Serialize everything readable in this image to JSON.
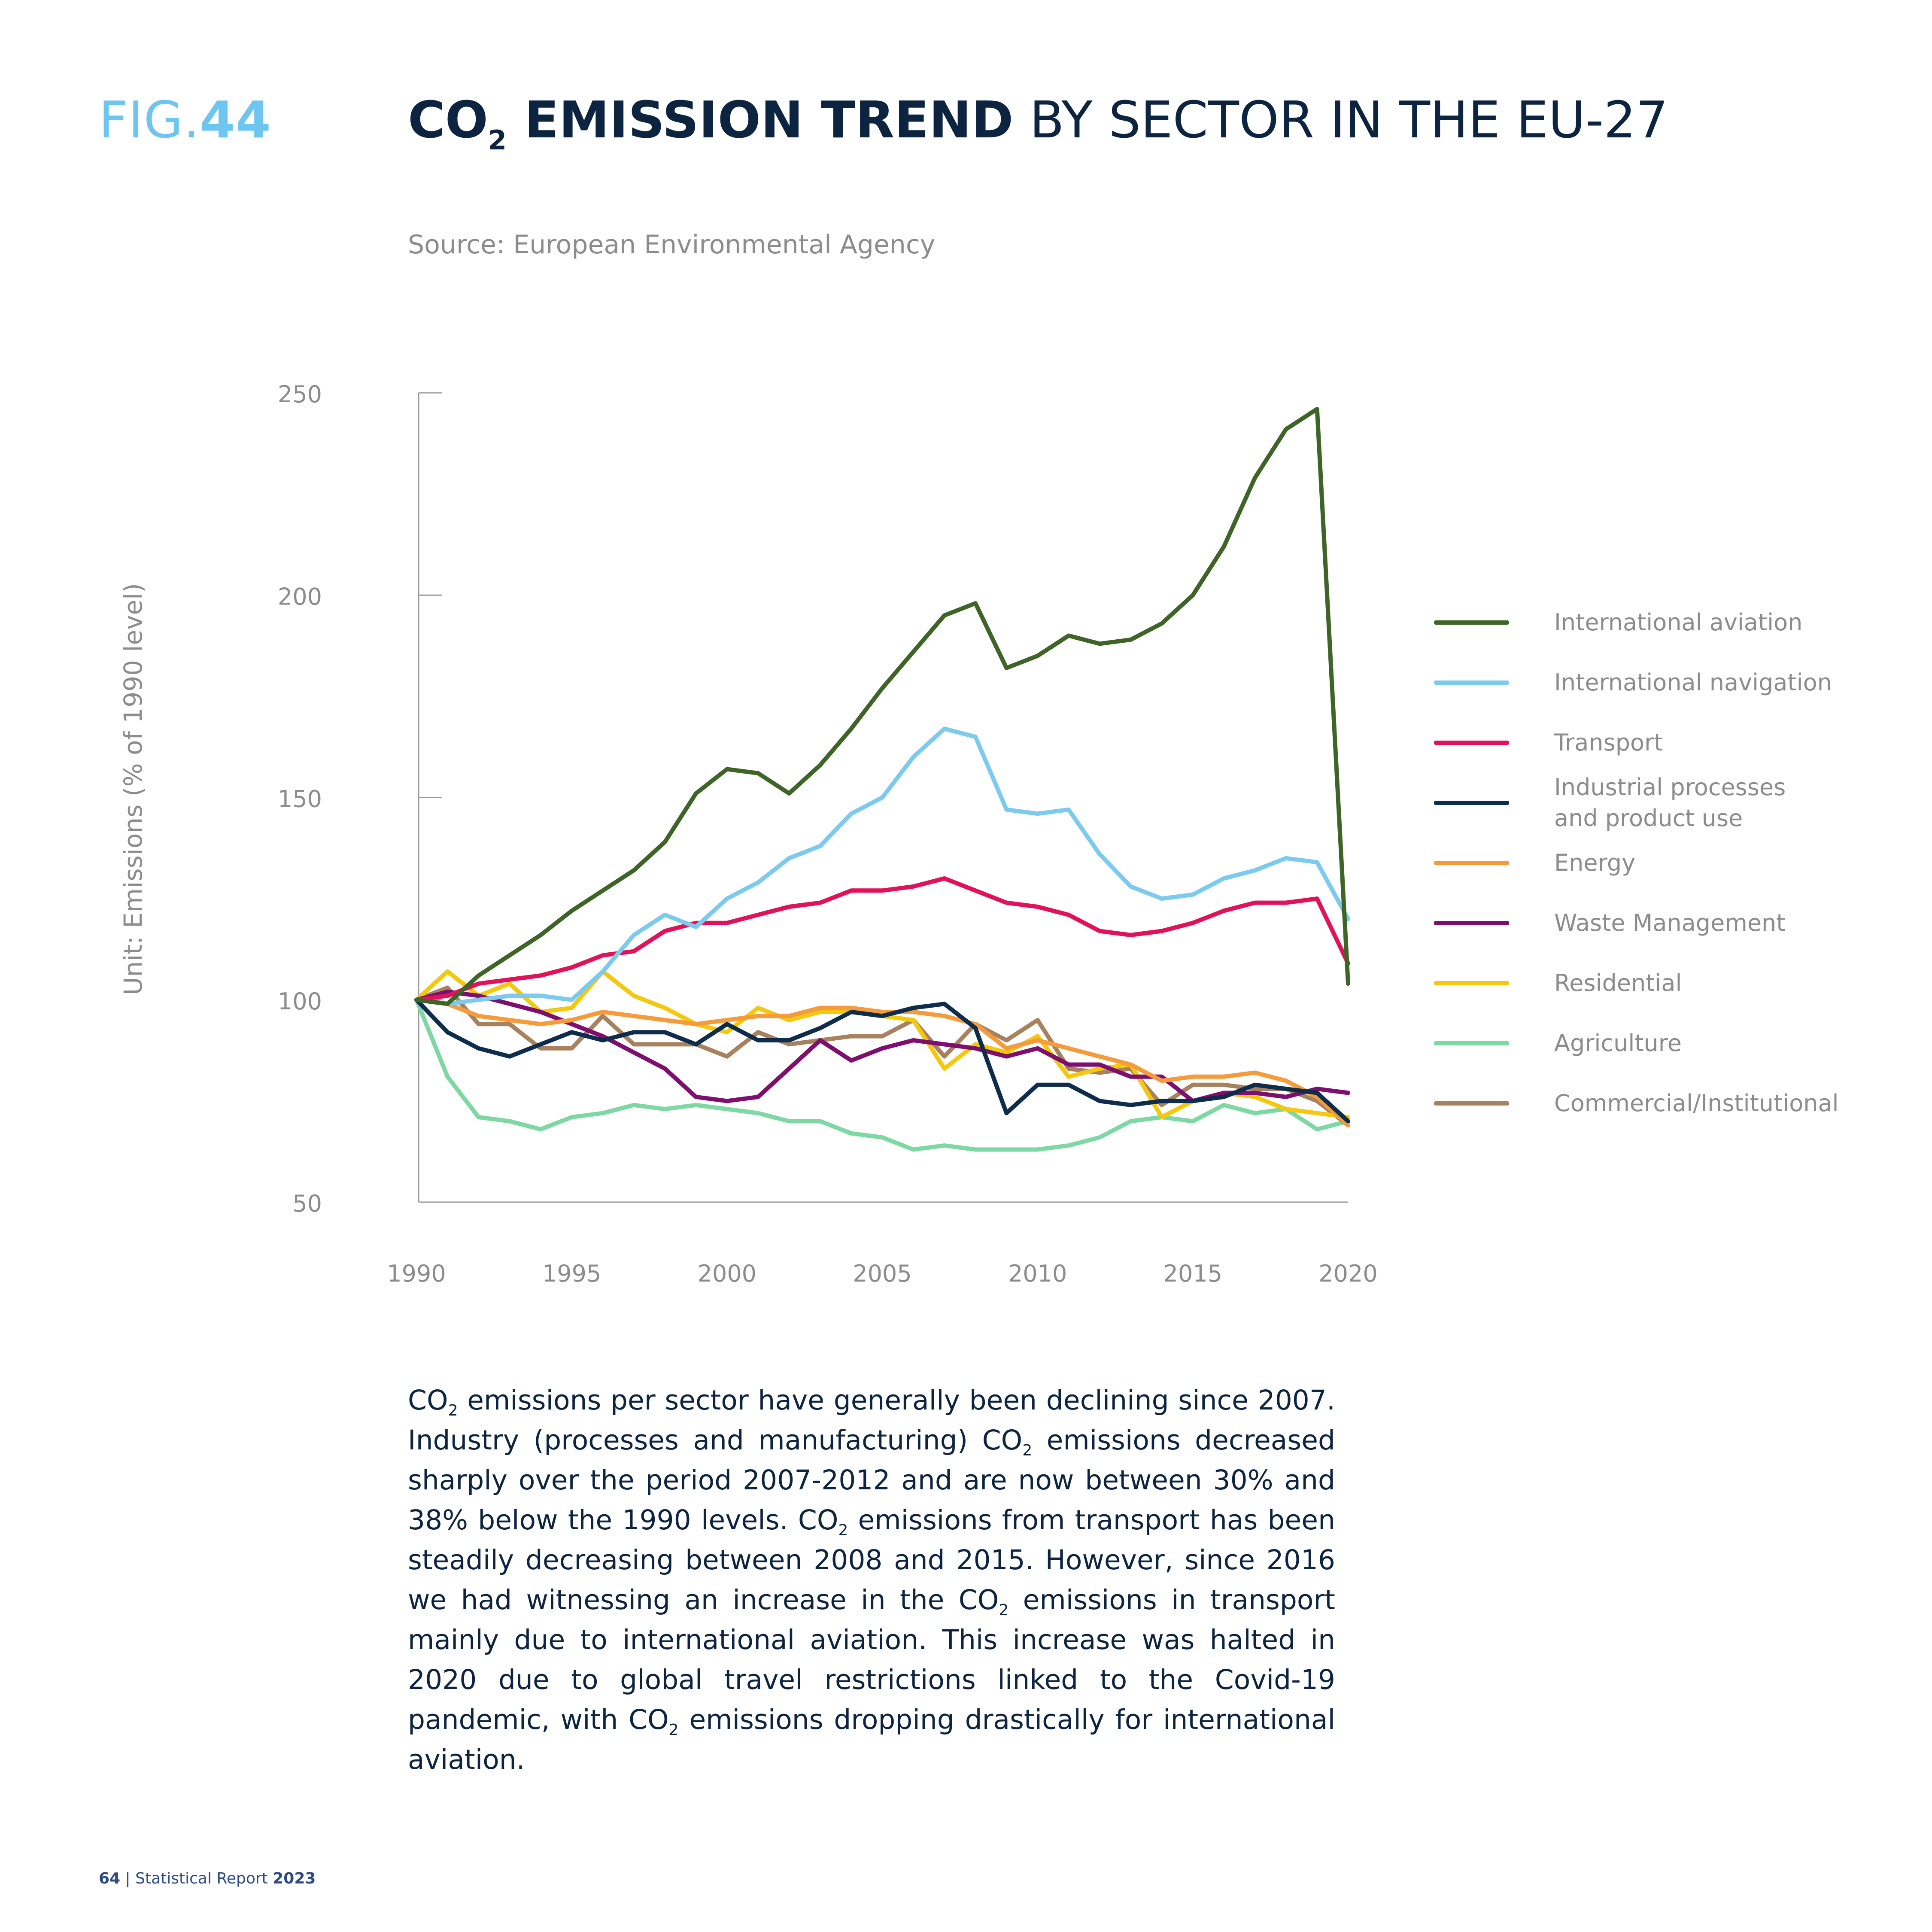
{
  "figure": {
    "label_prefix": "FIG.",
    "label_number": "44"
  },
  "title": {
    "co": "CO",
    "sub": "2",
    "bold_rest": " EMISSION TREND",
    "light": " BY SECTOR IN THE EU-27"
  },
  "source": "Source: European Environmental Agency",
  "chart_data": {
    "type": "line",
    "title": "",
    "xlabel": "",
    "ylabel": "Unit: Emissions (% of 1990 level)",
    "xlim": [
      1990,
      2020
    ],
    "ylim": [
      50,
      250
    ],
    "x_ticks": [
      "1990",
      "1995",
      "2000",
      "2005",
      "2010",
      "2015",
      "2020"
    ],
    "y_ticks": [
      "250",
      "200",
      "150",
      "100",
      "50"
    ],
    "grid": false,
    "legend_position": "right",
    "x": [
      1990,
      1991,
      1992,
      1993,
      1994,
      1995,
      1996,
      1997,
      1998,
      1999,
      2000,
      2001,
      2002,
      2003,
      2004,
      2005,
      2006,
      2007,
      2008,
      2009,
      2010,
      2011,
      2012,
      2013,
      2014,
      2015,
      2016,
      2017,
      2018,
      2019,
      2020
    ],
    "series": [
      {
        "name": "International aviation",
        "color": "#3e6427",
        "values": [
          100,
          99,
          106,
          111,
          116,
          122,
          127,
          132,
          139,
          151,
          157,
          156,
          151,
          158,
          167,
          177,
          186,
          195,
          198,
          182,
          185,
          190,
          188,
          189,
          193,
          200,
          212,
          229,
          241,
          246,
          104
        ]
      },
      {
        "name": "International navigation",
        "color": "#7ccbef",
        "values": [
          100,
          99,
          100,
          101,
          101,
          100,
          107,
          116,
          121,
          118,
          125,
          129,
          135,
          138,
          146,
          150,
          160,
          167,
          165,
          147,
          146,
          147,
          136,
          128,
          125,
          126,
          130,
          132,
          135,
          134,
          120
        ]
      },
      {
        "name": "Transport",
        "color": "#e1115a",
        "values": [
          100,
          101,
          104,
          105,
          106,
          108,
          111,
          112,
          117,
          119,
          119,
          121,
          123,
          124,
          127,
          127,
          128,
          130,
          127,
          124,
          123,
          121,
          117,
          116,
          117,
          119,
          122,
          124,
          124,
          125,
          109
        ]
      },
      {
        "name": "Industrial processes\nand product use",
        "color": "#0e2d4d",
        "values": [
          100,
          92,
          88,
          86,
          89,
          92,
          90,
          92,
          92,
          89,
          94,
          90,
          90,
          93,
          97,
          96,
          98,
          99,
          93,
          72,
          79,
          79,
          75,
          74,
          75,
          75,
          76,
          79,
          78,
          77,
          70
        ]
      },
      {
        "name": "Energy",
        "color": "#f59b3b",
        "values": [
          100,
          99,
          96,
          95,
          94,
          95,
          97,
          96,
          95,
          94,
          95,
          96,
          96,
          98,
          98,
          97,
          97,
          96,
          94,
          88,
          90,
          88,
          86,
          84,
          80,
          81,
          81,
          82,
          80,
          76,
          69
        ]
      },
      {
        "name": "Waste Management",
        "color": "#7e0f6e",
        "values": [
          100,
          102,
          101,
          99,
          97,
          94,
          91,
          87,
          83,
          76,
          75,
          76,
          83,
          90,
          85,
          88,
          90,
          89,
          88,
          86,
          88,
          84,
          84,
          81,
          81,
          75,
          77,
          77,
          76,
          78,
          77
        ]
      },
      {
        "name": "Residential",
        "color": "#f4c80f",
        "values": [
          100,
          107,
          101,
          104,
          97,
          98,
          107,
          101,
          98,
          94,
          92,
          98,
          95,
          97,
          97,
          96,
          95,
          83,
          89,
          87,
          91,
          81,
          83,
          84,
          71,
          75,
          77,
          76,
          73,
          72,
          71
        ]
      },
      {
        "name": "Agriculture",
        "color": "#7ed8a3",
        "values": [
          100,
          81,
          71,
          70,
          68,
          71,
          72,
          74,
          73,
          74,
          73,
          72,
          70,
          70,
          67,
          66,
          63,
          64,
          63,
          63,
          63,
          64,
          66,
          70,
          71,
          70,
          74,
          72,
          73,
          68,
          70
        ]
      },
      {
        "name": "Commercial/Institutional",
        "color": "#a8825e",
        "values": [
          100,
          103,
          94,
          94,
          88,
          88,
          96,
          89,
          89,
          89,
          86,
          92,
          89,
          90,
          91,
          91,
          95,
          86,
          94,
          90,
          95,
          83,
          82,
          83,
          74,
          79,
          79,
          78,
          78,
          75,
          69
        ]
      }
    ]
  },
  "paragraph": [
    {
      "t": "CO"
    },
    {
      "s": "2"
    },
    {
      "t": " emissions per sector have generally been declining since 2007. Industry (processes and manufacturing) CO"
    },
    {
      "s": "2"
    },
    {
      "t": " emissions decreased sharply over the period 2007-2012 and are now between 30% and 38% below the 1990 levels. CO"
    },
    {
      "s": "2"
    },
    {
      "t": " emissions from transport has been steadily decreasing between 2008 and 2015. However, since 2016 we had witnessing an increase in the CO"
    },
    {
      "s": "2"
    },
    {
      "t": " emissions in transport mainly due to international aviation. This increase was halted in 2020 due to global travel restrictions linked to the Covid-19 pandemic, with CO"
    },
    {
      "s": "2"
    },
    {
      "t": " emissions dropping drastically for international aviation."
    }
  ],
  "footer": {
    "page": "64",
    "separator": " | ",
    "report": "Statistical Report ",
    "year": "2023"
  }
}
